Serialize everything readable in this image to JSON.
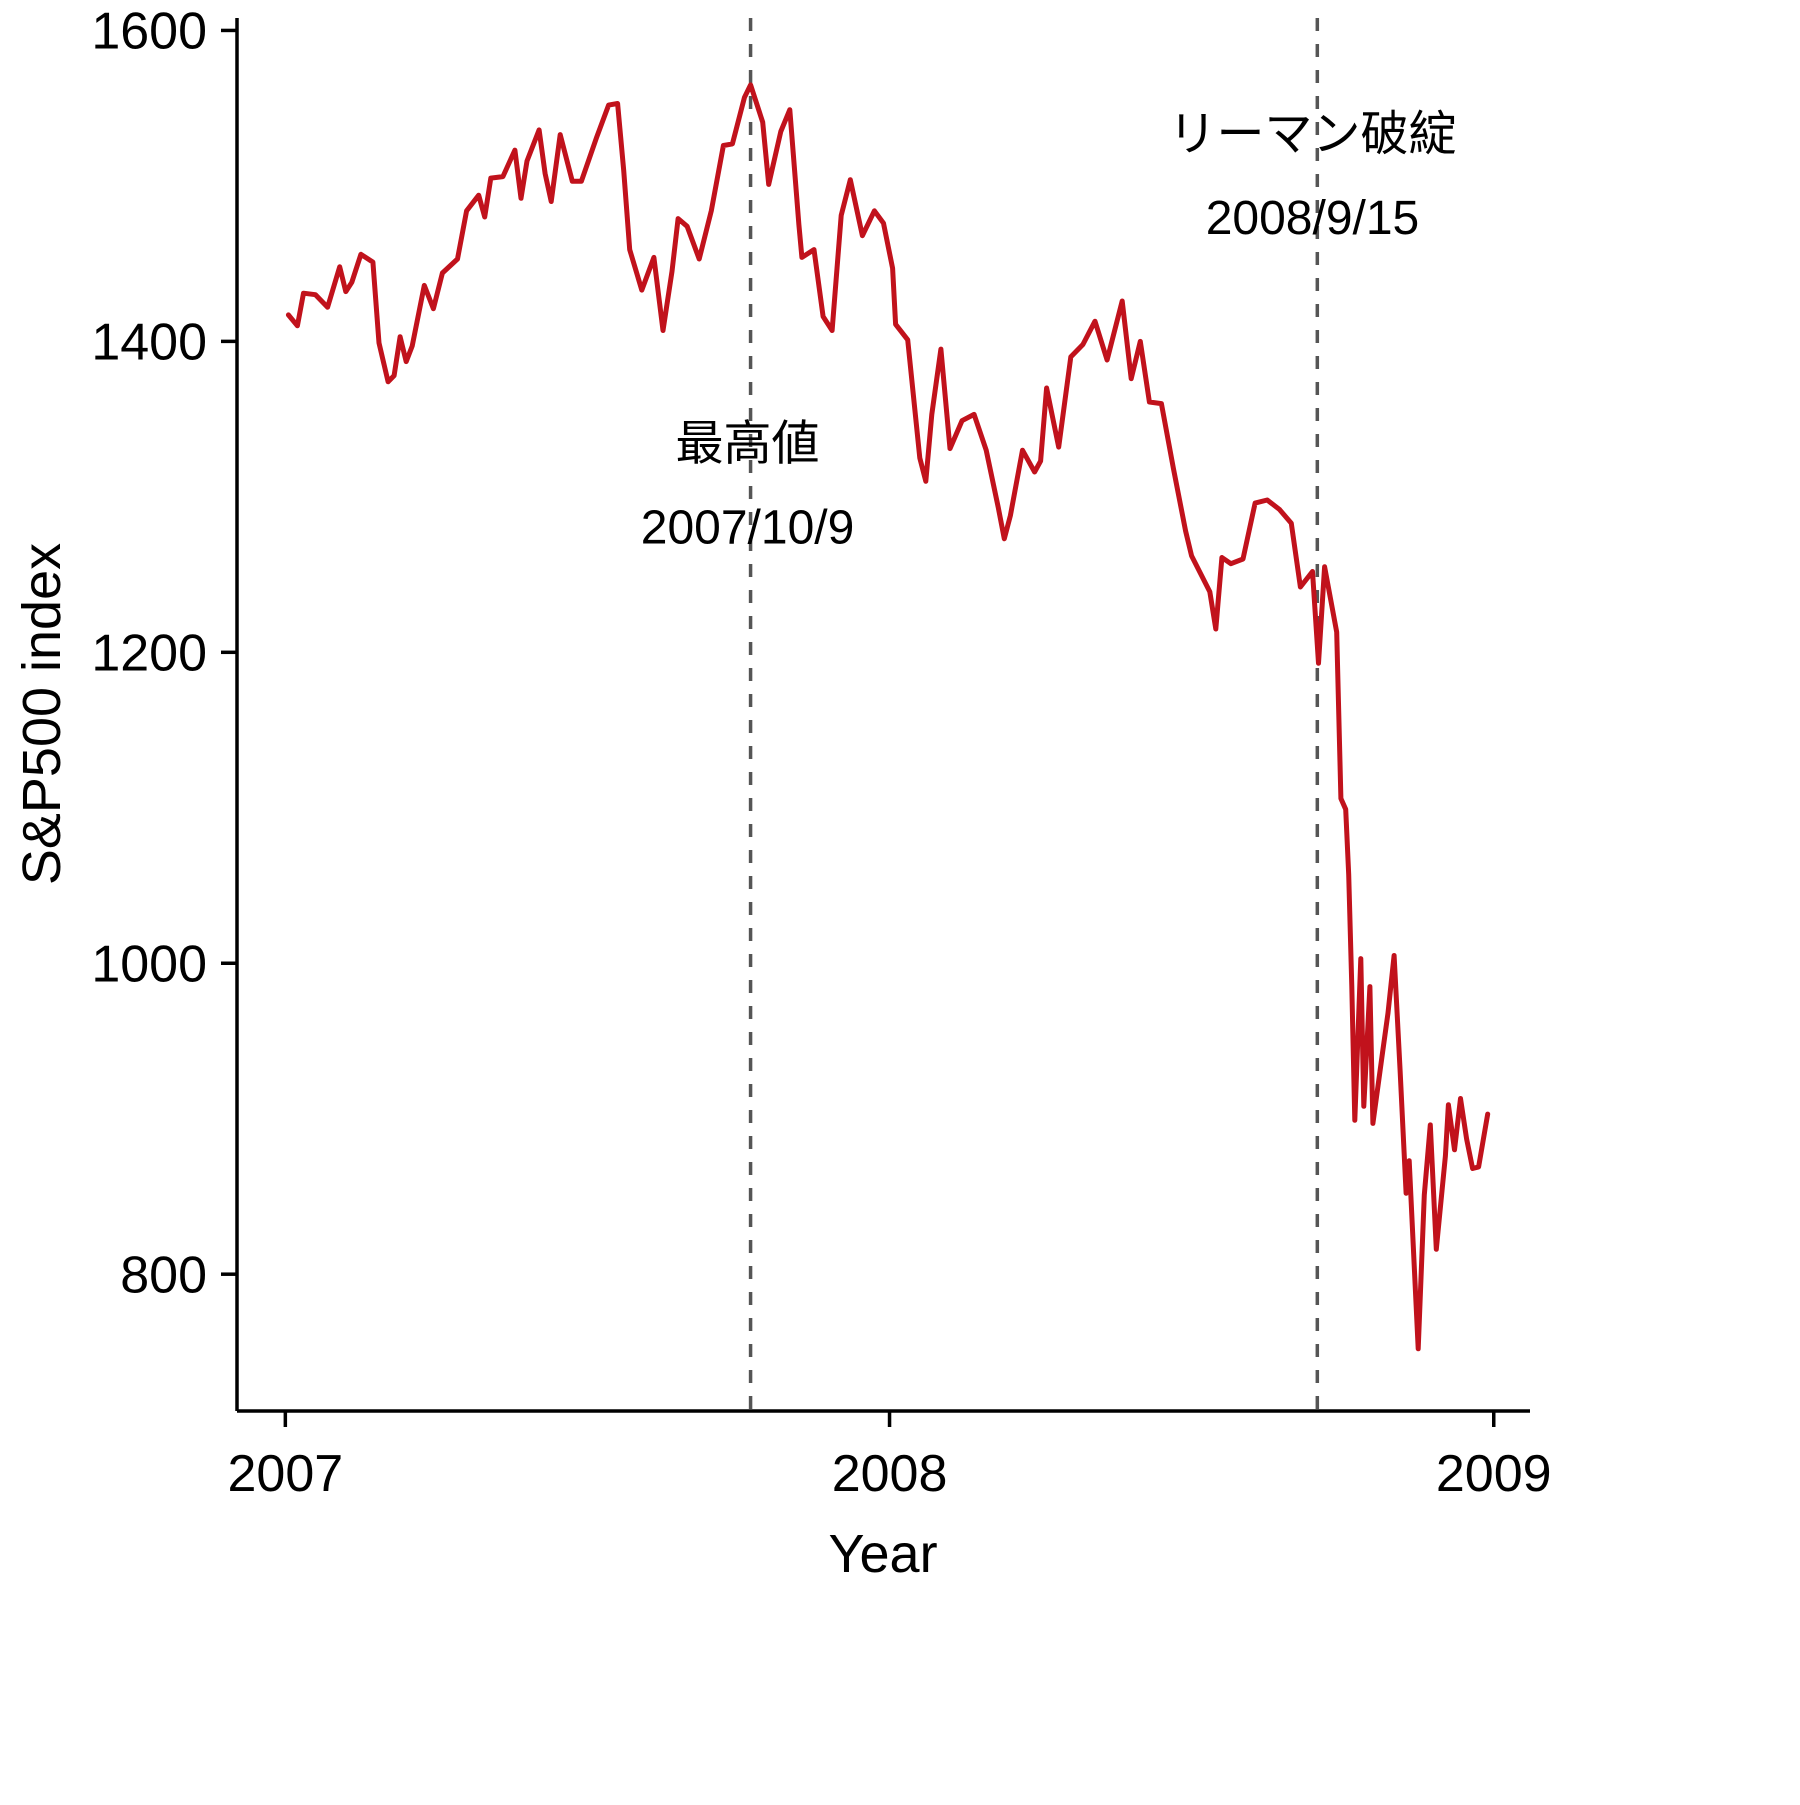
{
  "chart_data": {
    "type": "line",
    "title": "",
    "xlabel": "Year",
    "ylabel": "S&P500 index",
    "grid": false,
    "legend": false,
    "xlim": [
      2006.92,
      2009.06
    ],
    "ylim": [
      712,
      1608
    ],
    "x_ticks": [
      {
        "value": 2007,
        "label": "2007"
      },
      {
        "value": 2008,
        "label": "2008"
      },
      {
        "value": 2009,
        "label": "2009"
      }
    ],
    "y_ticks": [
      {
        "value": 800,
        "label": "800"
      },
      {
        "value": 1000,
        "label": "1000"
      },
      {
        "value": 1200,
        "label": "1200"
      },
      {
        "value": 1400,
        "label": "1400"
      },
      {
        "value": 1600,
        "label": "1600"
      }
    ],
    "line_color": "#C1121C",
    "vline_color": "#555555",
    "axis_color": "#000000",
    "vlines": [
      {
        "x": 2007.77,
        "event": "最高値",
        "date": "2007/10/9"
      },
      {
        "x": 2008.708,
        "event": "リーマン破綻",
        "date": "2008/9/15"
      }
    ],
    "annotations": [
      {
        "lines": [
          "最高値",
          "2007/10/9"
        ],
        "x": 2007.765,
        "y": 1324
      },
      {
        "lines": [
          "リーマン破綻",
          "2008/9/15"
        ],
        "x": 2008.7,
        "y": 1523
      }
    ],
    "series": [
      {
        "name": "S&P500",
        "points": [
          [
            2007.005,
            1417
          ],
          [
            2007.02,
            1410
          ],
          [
            2007.03,
            1431
          ],
          [
            2007.05,
            1430
          ],
          [
            2007.07,
            1422
          ],
          [
            2007.09,
            1448
          ],
          [
            2007.1,
            1432
          ],
          [
            2007.11,
            1438
          ],
          [
            2007.125,
            1456
          ],
          [
            2007.145,
            1451
          ],
          [
            2007.155,
            1399
          ],
          [
            2007.17,
            1374
          ],
          [
            2007.18,
            1378
          ],
          [
            2007.19,
            1403
          ],
          [
            2007.2,
            1387
          ],
          [
            2007.21,
            1397
          ],
          [
            2007.23,
            1436
          ],
          [
            2007.245,
            1421
          ],
          [
            2007.26,
            1444
          ],
          [
            2007.285,
            1453
          ],
          [
            2007.3,
            1484
          ],
          [
            2007.32,
            1494
          ],
          [
            2007.33,
            1480
          ],
          [
            2007.34,
            1505
          ],
          [
            2007.36,
            1506
          ],
          [
            2007.38,
            1523
          ],
          [
            2007.39,
            1492
          ],
          [
            2007.4,
            1516
          ],
          [
            2007.42,
            1536
          ],
          [
            2007.43,
            1508
          ],
          [
            2007.44,
            1490
          ],
          [
            2007.455,
            1533
          ],
          [
            2007.475,
            1503
          ],
          [
            2007.49,
            1503
          ],
          [
            2007.515,
            1531
          ],
          [
            2007.535,
            1552
          ],
          [
            2007.55,
            1553
          ],
          [
            2007.56,
            1510
          ],
          [
            2007.57,
            1459
          ],
          [
            2007.59,
            1433
          ],
          [
            2007.61,
            1454
          ],
          [
            2007.625,
            1407
          ],
          [
            2007.64,
            1445
          ],
          [
            2007.65,
            1479
          ],
          [
            2007.665,
            1474
          ],
          [
            2007.685,
            1453
          ],
          [
            2007.705,
            1484
          ],
          [
            2007.725,
            1526
          ],
          [
            2007.74,
            1527
          ],
          [
            2007.76,
            1557
          ],
          [
            2007.77,
            1565
          ],
          [
            2007.79,
            1541
          ],
          [
            2007.8,
            1501
          ],
          [
            2007.82,
            1535
          ],
          [
            2007.835,
            1549
          ],
          [
            2007.85,
            1475
          ],
          [
            2007.855,
            1454
          ],
          [
            2007.875,
            1459
          ],
          [
            2007.89,
            1416
          ],
          [
            2007.905,
            1407
          ],
          [
            2007.92,
            1481
          ],
          [
            2007.935,
            1504
          ],
          [
            2007.955,
            1468
          ],
          [
            2007.975,
            1484
          ],
          [
            2007.99,
            1476
          ],
          [
            2008.005,
            1447
          ],
          [
            2008.01,
            1411
          ],
          [
            2008.03,
            1401
          ],
          [
            2008.05,
            1325
          ],
          [
            2008.06,
            1310
          ],
          [
            2008.07,
            1353
          ],
          [
            2008.085,
            1395
          ],
          [
            2008.1,
            1331
          ],
          [
            2008.12,
            1349
          ],
          [
            2008.14,
            1353
          ],
          [
            2008.16,
            1330
          ],
          [
            2008.18,
            1293
          ],
          [
            2008.19,
            1273
          ],
          [
            2008.2,
            1288
          ],
          [
            2008.22,
            1330
          ],
          [
            2008.24,
            1316
          ],
          [
            2008.25,
            1323
          ],
          [
            2008.26,
            1370
          ],
          [
            2008.28,
            1332
          ],
          [
            2008.3,
            1390
          ],
          [
            2008.32,
            1398
          ],
          [
            2008.34,
            1413
          ],
          [
            2008.36,
            1388
          ],
          [
            2008.385,
            1426
          ],
          [
            2008.4,
            1376
          ],
          [
            2008.415,
            1400
          ],
          [
            2008.43,
            1361
          ],
          [
            2008.45,
            1360
          ],
          [
            2008.47,
            1318
          ],
          [
            2008.49,
            1278
          ],
          [
            2008.5,
            1262
          ],
          [
            2008.53,
            1239
          ],
          [
            2008.54,
            1215
          ],
          [
            2008.55,
            1261
          ],
          [
            2008.565,
            1257
          ],
          [
            2008.585,
            1260
          ],
          [
            2008.605,
            1296
          ],
          [
            2008.625,
            1298
          ],
          [
            2008.645,
            1292
          ],
          [
            2008.665,
            1283
          ],
          [
            2008.68,
            1242
          ],
          [
            2008.7,
            1252
          ],
          [
            2008.71,
            1193
          ],
          [
            2008.72,
            1255
          ],
          [
            2008.74,
            1213
          ],
          [
            2008.747,
            1106
          ],
          [
            2008.755,
            1099
          ],
          [
            2008.76,
            1057
          ],
          [
            2008.765,
            985
          ],
          [
            2008.77,
            899
          ],
          [
            2008.78,
            1003
          ],
          [
            2008.785,
            908
          ],
          [
            2008.795,
            985
          ],
          [
            2008.8,
            897
          ],
          [
            2008.815,
            940
          ],
          [
            2008.825,
            968
          ],
          [
            2008.835,
            1005
          ],
          [
            2008.845,
            931
          ],
          [
            2008.855,
            852
          ],
          [
            2008.86,
            873
          ],
          [
            2008.875,
            752
          ],
          [
            2008.885,
            851
          ],
          [
            2008.895,
            896
          ],
          [
            2008.905,
            816
          ],
          [
            2008.92,
            876
          ],
          [
            2008.925,
            909
          ],
          [
            2008.935,
            880
          ],
          [
            2008.945,
            913
          ],
          [
            2008.955,
            887
          ],
          [
            2008.965,
            868
          ],
          [
            2008.975,
            869
          ],
          [
            2008.99,
            903
          ]
        ]
      }
    ]
  }
}
